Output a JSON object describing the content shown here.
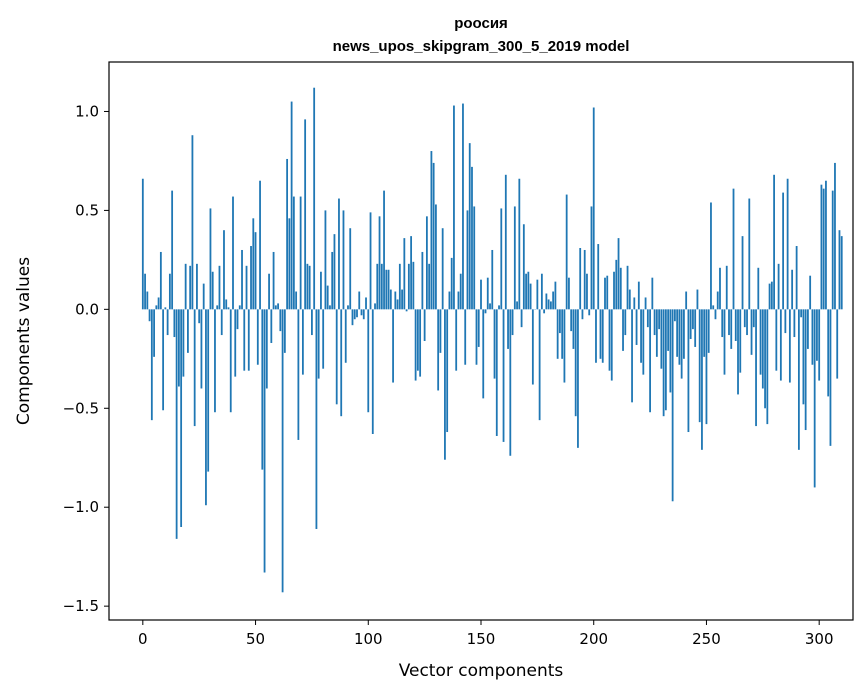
{
  "chart_data": {
    "type": "bar",
    "title": "роосия",
    "subtitle": "news_upos_skipgram_300_5_2019 model",
    "xlabel": "Vector components",
    "ylabel": "Components values",
    "xlim": [
      -15,
      315
    ],
    "ylim": [
      -1.57,
      1.25
    ],
    "xticks": [
      0,
      50,
      100,
      150,
      200,
      250,
      300
    ],
    "xtick_labels": [
      "0",
      "50",
      "100",
      "150",
      "200",
      "250",
      "300"
    ],
    "yticks": [
      -1.5,
      -1.0,
      -0.5,
      0.0,
      0.5,
      1.0
    ],
    "ytick_labels": [
      "−1.5",
      "−1.0",
      "−0.5",
      "0.0",
      "0.5",
      "1.0"
    ],
    "grid": false,
    "bar_color": "#1f77b4",
    "values": [
      0.66,
      0.18,
      0.09,
      -0.06,
      -0.56,
      -0.24,
      0.02,
      0.06,
      0.29,
      -0.51,
      0.01,
      -0.13,
      0.18,
      0.6,
      -0.14,
      -1.16,
      -0.39,
      -1.1,
      -0.34,
      0.23,
      -0.22,
      0.22,
      0.88,
      -0.59,
      0.23,
      -0.07,
      -0.4,
      0.13,
      -0.99,
      -0.82,
      0.51,
      0.19,
      -0.52,
      0.02,
      0.22,
      -0.13,
      0.4,
      0.05,
      0.01,
      -0.52,
      0.57,
      -0.34,
      -0.1,
      0.02,
      0.3,
      -0.31,
      0.22,
      -0.31,
      0.32,
      0.46,
      0.39,
      -0.28,
      0.65,
      -0.81,
      -1.33,
      -0.4,
      0.18,
      -0.17,
      0.29,
      0.02,
      0.03,
      -0.11,
      -1.43,
      -0.22,
      0.76,
      0.46,
      1.05,
      0.57,
      0.09,
      -0.66,
      0.57,
      -0.33,
      0.96,
      0.23,
      0.22,
      -0.13,
      1.12,
      -1.11,
      -0.35,
      0.19,
      -0.3,
      0.5,
      0.12,
      0.02,
      0.29,
      0.38,
      -0.48,
      0.56,
      -0.54,
      0.5,
      -0.27,
      0.02,
      0.41,
      -0.08,
      -0.05,
      -0.04,
      0.09,
      -0.03,
      -0.05,
      0.06,
      -0.52,
      0.49,
      -0.63,
      0.03,
      0.23,
      0.47,
      0.23,
      0.6,
      0.2,
      0.2,
      0.1,
      -0.37,
      0.09,
      0.05,
      0.23,
      0.1,
      0.36,
      -0.01,
      0.23,
      0.37,
      0.24,
      -0.36,
      -0.31,
      -0.34,
      0.29,
      -0.16,
      0.47,
      0.23,
      0.8,
      0.74,
      0.53,
      -0.41,
      -0.22,
      0.41,
      -0.76,
      -0.62,
      0.09,
      0.26,
      1.03,
      -0.31,
      0.09,
      0.18,
      1.04,
      -0.28,
      0.5,
      0.84,
      0.72,
      0.52,
      -0.28,
      -0.19,
      0.15,
      -0.45,
      -0.02,
      0.16,
      0.03,
      0.3,
      -0.35,
      -0.64,
      0.02,
      0.51,
      -0.67,
      0.68,
      -0.2,
      -0.74,
      -0.13,
      0.52,
      0.04,
      0.66,
      -0.09,
      0.43,
      0.18,
      0.19,
      0.13,
      -0.38,
      0.0,
      0.15,
      -0.56,
      0.18,
      -0.02,
      0.08,
      0.05,
      0.04,
      0.09,
      0.14,
      -0.25,
      -0.12,
      -0.25,
      -0.37,
      0.58,
      0.16,
      -0.11,
      -0.2,
      -0.54,
      -0.7,
      0.31,
      -0.05,
      0.3,
      0.18,
      -0.03,
      0.52,
      1.02,
      -0.27,
      0.33,
      -0.25,
      -0.27,
      0.16,
      0.17,
      -0.31,
      -0.36,
      0.19,
      0.25,
      0.36,
      0.21,
      -0.21,
      -0.13,
      0.22,
      0.1,
      -0.47,
      0.06,
      -0.18,
      0.14,
      -0.27,
      -0.33,
      0.06,
      -0.09,
      -0.52,
      0.16,
      -0.13,
      -0.24,
      -0.1,
      -0.3,
      -0.54,
      -0.51,
      -0.21,
      -0.42,
      -0.97,
      -0.06,
      -0.24,
      -0.28,
      -0.35,
      -0.25,
      0.09,
      -0.62,
      -0.15,
      -0.1,
      -0.19,
      0.1,
      -0.57,
      -0.71,
      -0.24,
      -0.58,
      -0.22,
      0.54,
      0.02,
      -0.05,
      0.09,
      0.21,
      -0.14,
      -0.33,
      0.22,
      -0.13,
      -0.2,
      0.61,
      -0.16,
      -0.43,
      -0.32,
      0.37,
      -0.09,
      -0.13,
      0.56,
      -0.23,
      -0.09,
      -0.59,
      0.21,
      -0.33,
      -0.4,
      -0.5,
      -0.58,
      0.13,
      0.14,
      0.68,
      -0.31,
      0.23,
      -0.36,
      0.59,
      -0.12,
      0.66,
      -0.37,
      0.2,
      -0.14,
      0.32,
      -0.71,
      -0.04,
      -0.48,
      -0.61,
      -0.2,
      0.17,
      -0.28,
      -0.9,
      -0.26,
      -0.36,
      0.63,
      0.61,
      0.65,
      -0.44,
      -0.69,
      0.6,
      0.74,
      -0.35,
      0.4,
      0.37
    ]
  }
}
